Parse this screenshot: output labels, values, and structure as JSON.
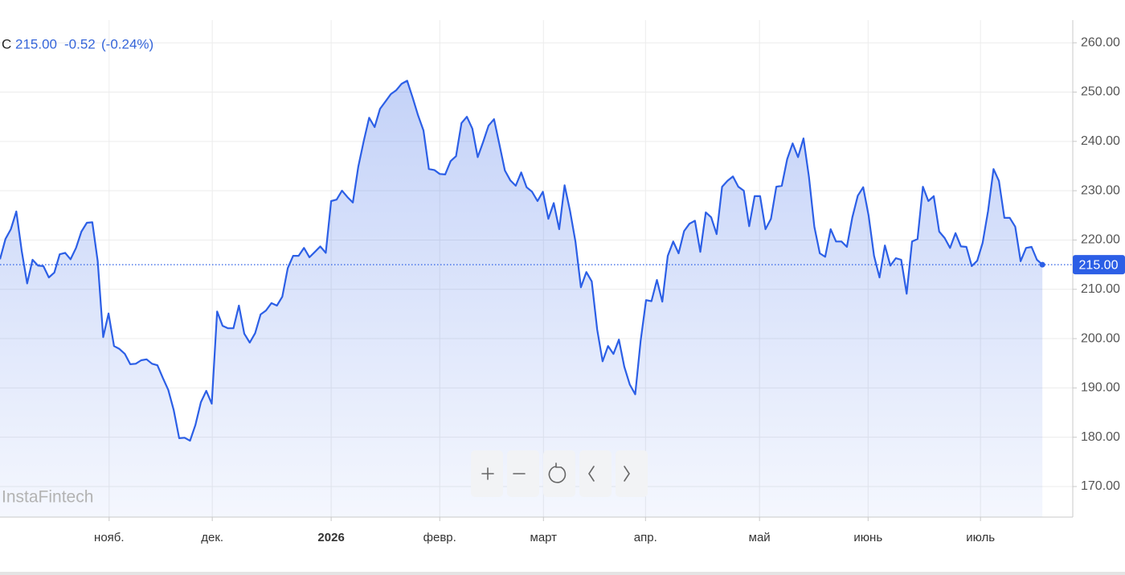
{
  "chart_data": {
    "type": "area",
    "header": {
      "symbol": "C",
      "price": "215.00",
      "change": "-0.52",
      "change_pct": "(-0.24%)"
    },
    "watermark": "InstaFintech",
    "color": "#2c5fe6",
    "grid": true,
    "values": [
      216.1,
      220.2,
      222.2,
      225.8,
      217.8,
      211.2,
      216.0,
      214.8,
      214.7,
      212.4,
      213.4,
      217.1,
      217.4,
      216.1,
      218.4,
      221.7,
      223.5,
      223.6,
      215.7,
      200.3,
      205.1,
      198.5,
      197.9,
      196.9,
      194.8,
      194.9,
      195.6,
      195.8,
      194.9,
      194.6,
      192.0,
      189.6,
      185.5,
      179.8,
      179.9,
      179.3,
      182.5,
      187.1,
      189.4,
      186.8,
      205.5,
      202.6,
      202.1,
      202.1,
      206.7,
      201.0,
      199.2,
      201.1,
      204.9,
      205.7,
      207.2,
      206.7,
      208.5,
      214.3,
      216.8,
      216.8,
      218.4,
      216.5,
      217.6,
      218.7,
      217.4,
      227.9,
      228.2,
      230.0,
      228.7,
      227.6,
      234.9,
      240.1,
      244.8,
      242.9,
      246.6,
      248.1,
      249.6,
      250.4,
      251.7,
      252.3,
      248.9,
      245.3,
      242.2,
      234.4,
      234.2,
      233.4,
      233.3,
      236.0,
      237.0,
      243.7,
      245.0,
      242.6,
      236.8,
      239.9,
      243.2,
      244.5,
      239.3,
      234.1,
      232.1,
      231.0,
      233.7,
      230.7,
      229.8,
      227.9,
      229.8,
      224.3,
      227.5,
      222.2,
      231.1,
      225.9,
      219.7,
      210.4,
      213.5,
      211.6,
      201.8,
      195.4,
      198.5,
      196.9,
      199.8,
      194.3,
      190.7,
      188.7,
      199.5,
      207.8,
      207.6,
      211.9,
      207.5,
      216.8,
      219.7,
      217.3,
      221.8,
      223.3,
      223.9,
      217.6,
      225.6,
      224.6,
      221.2,
      230.8,
      232.0,
      232.9,
      230.8,
      230.0,
      222.8,
      228.9,
      228.9,
      222.2,
      224.3,
      230.8,
      231.0,
      236.4,
      239.6,
      236.8,
      240.6,
      232.8,
      222.7,
      217.3,
      216.6,
      222.2,
      219.7,
      219.7,
      218.6,
      224.6,
      229.0,
      230.7,
      224.9,
      216.8,
      212.4,
      218.9,
      214.8,
      216.3,
      216.0,
      209.1,
      219.7,
      220.2,
      230.8,
      227.9,
      228.9,
      221.7,
      220.4,
      218.4,
      221.4,
      218.7,
      218.6,
      214.7,
      215.8,
      219.4,
      225.9,
      234.4,
      232.0,
      224.5,
      224.5,
      222.7,
      215.7,
      218.4,
      218.6,
      216.0,
      215.0
    ],
    "xlim": [
      0,
      197.6
    ],
    "xticks": [
      {
        "value": 20.1,
        "label": "нояб."
      },
      {
        "value": 39.1,
        "label": "дек."
      },
      {
        "value": 61.0,
        "label": "2026"
      },
      {
        "value": 81.0,
        "label": "февр."
      },
      {
        "value": 100.1,
        "label": "март"
      },
      {
        "value": 118.9,
        "label": "апр."
      },
      {
        "value": 139.9,
        "label": "май"
      },
      {
        "value": 159.9,
        "label": "июнь"
      },
      {
        "value": 180.6,
        "label": "июль"
      }
    ],
    "ylim": [
      163.8,
      264.6
    ],
    "yticks": [
      {
        "value": 170,
        "label": "170.00"
      },
      {
        "value": 180,
        "label": "180.00"
      },
      {
        "value": 190,
        "label": "190.00"
      },
      {
        "value": 200,
        "label": "200.00"
      },
      {
        "value": 210,
        "label": "210.00"
      },
      {
        "value": 220,
        "label": "220.00"
      },
      {
        "value": 230,
        "label": "230.00"
      },
      {
        "value": 240,
        "label": "240.00"
      },
      {
        "value": 250,
        "label": "250.00"
      },
      {
        "value": 260,
        "label": "260.00"
      }
    ]
  }
}
